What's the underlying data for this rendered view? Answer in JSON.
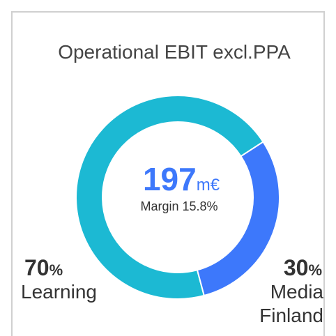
{
  "chart_data": {
    "type": "donut",
    "title": "Operational EBIT excl.PPA",
    "center_value": 197,
    "center_unit": "m€",
    "center_subtitle": "Margin 15.8%",
    "categories": [
      "Learning",
      "Media Finland"
    ],
    "values": [
      70,
      30
    ],
    "unit": "%",
    "colors": [
      "#1cb9d3",
      "#3d78fb"
    ]
  }
}
